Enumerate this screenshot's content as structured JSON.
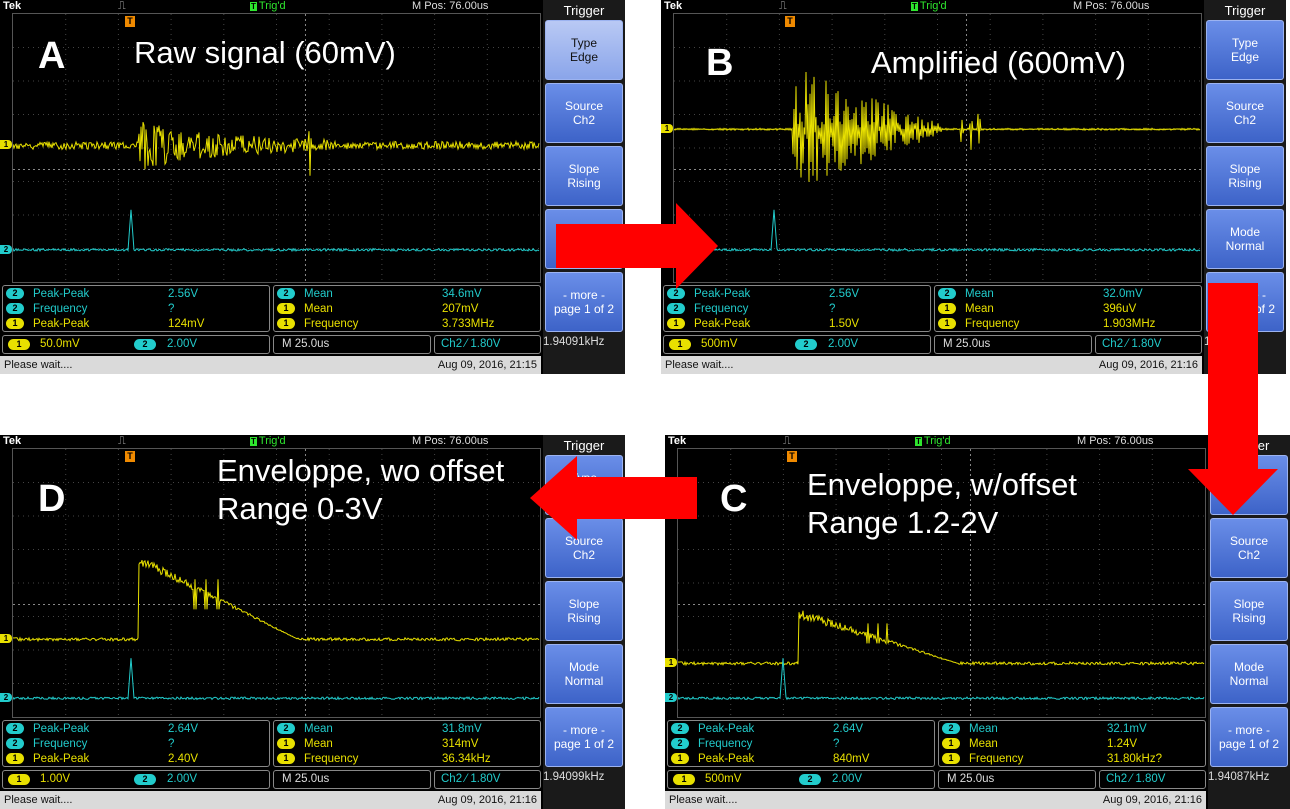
{
  "panels": [
    {
      "id": "A",
      "caption_lines": [
        "Raw signal (60mV)"
      ],
      "topbar": {
        "brand": "Tek",
        "trig": "Trig'd",
        "mpos": "M Pos: 76.00us"
      },
      "menu": {
        "title": "Trigger",
        "buttons": [
          {
            "l1": "Type",
            "l2": "Edge",
            "selected": true
          },
          {
            "l1": "Source",
            "l2": "Ch2"
          },
          {
            "l1": "Slope",
            "l2": "Rising"
          },
          {
            "l1": "",
            "l2": ""
          },
          {
            "l1": "- more -",
            "l2": "page 1 of 2"
          }
        ]
      },
      "meas_left": [
        {
          "ch": "2",
          "label": "Peak-Peak",
          "value": "2.56V"
        },
        {
          "ch": "2",
          "label": "Frequency",
          "value": "?"
        },
        {
          "ch": "1",
          "label": "Peak-Peak",
          "value": "124mV"
        }
      ],
      "meas_right": [
        {
          "ch": "2",
          "label": "Mean",
          "value": "34.6mV"
        },
        {
          "ch": "1",
          "label": "Mean",
          "value": "207mV"
        },
        {
          "ch": "1",
          "label": "Frequency",
          "value": "3.733MHz"
        }
      ],
      "ch1_scale": "50.0mV",
      "ch2_scale": "2.00V",
      "timebase": "M 25.0us",
      "trigger_readout": "Ch2 ⁄ 1.80V",
      "trigger_freq": "1.94091kHz",
      "status_left": "Please wait....",
      "status_right": "Aug 09, 2016, 21:15"
    },
    {
      "id": "B",
      "caption_lines": [
        "Amplified (600mV)"
      ],
      "topbar": {
        "brand": "Tek",
        "trig": "Trig'd",
        "mpos": "M Pos: 76.00us"
      },
      "menu": {
        "title": "Trigger",
        "buttons": [
          {
            "l1": "Type",
            "l2": "Edge"
          },
          {
            "l1": "Source",
            "l2": "Ch2"
          },
          {
            "l1": "Slope",
            "l2": "Rising"
          },
          {
            "l1": "Mode",
            "l2": "Normal"
          },
          {
            "l1": "- more -",
            "l2": "page 1 of 2"
          }
        ]
      },
      "meas_left": [
        {
          "ch": "2",
          "label": "Peak-Peak",
          "value": "2.56V"
        },
        {
          "ch": "2",
          "label": "Frequency",
          "value": "?"
        },
        {
          "ch": "1",
          "label": "Peak-Peak",
          "value": "1.50V"
        }
      ],
      "meas_right": [
        {
          "ch": "2",
          "label": "Mean",
          "value": "32.0mV"
        },
        {
          "ch": "1",
          "label": "Mean",
          "value": "396uV"
        },
        {
          "ch": "1",
          "label": "Frequency",
          "value": "1.903MHz"
        }
      ],
      "ch1_scale": "500mV",
      "ch2_scale": "2.00V",
      "timebase": "M 25.0us",
      "trigger_readout": "Ch2 ⁄ 1.80V",
      "trigger_freq": "1.94kHz",
      "status_left": "Please wait....",
      "status_right": "Aug 09, 2016, 21:16"
    },
    {
      "id": "D",
      "caption_lines": [
        "Enveloppe, wo offset",
        "Range 0-3V"
      ],
      "topbar": {
        "brand": "Tek",
        "trig": "Trig'd",
        "mpos": "M Pos: 76.00us"
      },
      "menu": {
        "title": "Trigger",
        "buttons": [
          {
            "l1": "Type",
            "l2": "Edge"
          },
          {
            "l1": "Source",
            "l2": "Ch2"
          },
          {
            "l1": "Slope",
            "l2": "Rising"
          },
          {
            "l1": "Mode",
            "l2": "Normal"
          },
          {
            "l1": "- more -",
            "l2": "page 1 of 2"
          }
        ]
      },
      "meas_left": [
        {
          "ch": "2",
          "label": "Peak-Peak",
          "value": "2.64V"
        },
        {
          "ch": "2",
          "label": "Frequency",
          "value": "?"
        },
        {
          "ch": "1",
          "label": "Peak-Peak",
          "value": "2.40V"
        }
      ],
      "meas_right": [
        {
          "ch": "2",
          "label": "Mean",
          "value": "31.8mV"
        },
        {
          "ch": "1",
          "label": "Mean",
          "value": "314mV"
        },
        {
          "ch": "1",
          "label": "Frequency",
          "value": "36.34kHz"
        }
      ],
      "ch1_scale": "1.00V",
      "ch2_scale": "2.00V",
      "timebase": "M 25.0us",
      "trigger_readout": "Ch2 ⁄ 1.80V",
      "trigger_freq": "1.94099kHz",
      "status_left": "Please wait....",
      "status_right": "Aug 09, 2016, 21:16"
    },
    {
      "id": "C",
      "caption_lines": [
        "Enveloppe, w/offset",
        "Range 1.2-2V"
      ],
      "topbar": {
        "brand": "Tek",
        "trig": "Trig'd",
        "mpos": "M Pos: 76.00us"
      },
      "menu": {
        "title": "Trigger",
        "buttons": [
          {
            "l1": "",
            "l2": ""
          },
          {
            "l1": "Source",
            "l2": "Ch2"
          },
          {
            "l1": "Slope",
            "l2": "Rising"
          },
          {
            "l1": "Mode",
            "l2": "Normal"
          },
          {
            "l1": "- more -",
            "l2": "page 1 of 2"
          }
        ]
      },
      "meas_left": [
        {
          "ch": "2",
          "label": "Peak-Peak",
          "value": "2.64V"
        },
        {
          "ch": "2",
          "label": "Frequency",
          "value": "?"
        },
        {
          "ch": "1",
          "label": "Peak-Peak",
          "value": "840mV"
        }
      ],
      "meas_right": [
        {
          "ch": "2",
          "label": "Mean",
          "value": "32.1mV"
        },
        {
          "ch": "1",
          "label": "Mean",
          "value": "1.24V"
        },
        {
          "ch": "1",
          "label": "Frequency",
          "value": "31.80kHz?"
        }
      ],
      "ch1_scale": "500mV",
      "ch2_scale": "2.00V",
      "timebase": "M 25.0us",
      "trigger_readout": "Ch2 ⁄ 1.80V",
      "trigger_freq": "1.94087kHz",
      "status_left": "Please wait....",
      "status_right": "Aug 09, 2016, 21:16"
    }
  ],
  "colors": {
    "ch1": "#e8e000",
    "ch2": "#22cccc",
    "arrow": "#ff0000",
    "menu": "#3d63c8"
  }
}
